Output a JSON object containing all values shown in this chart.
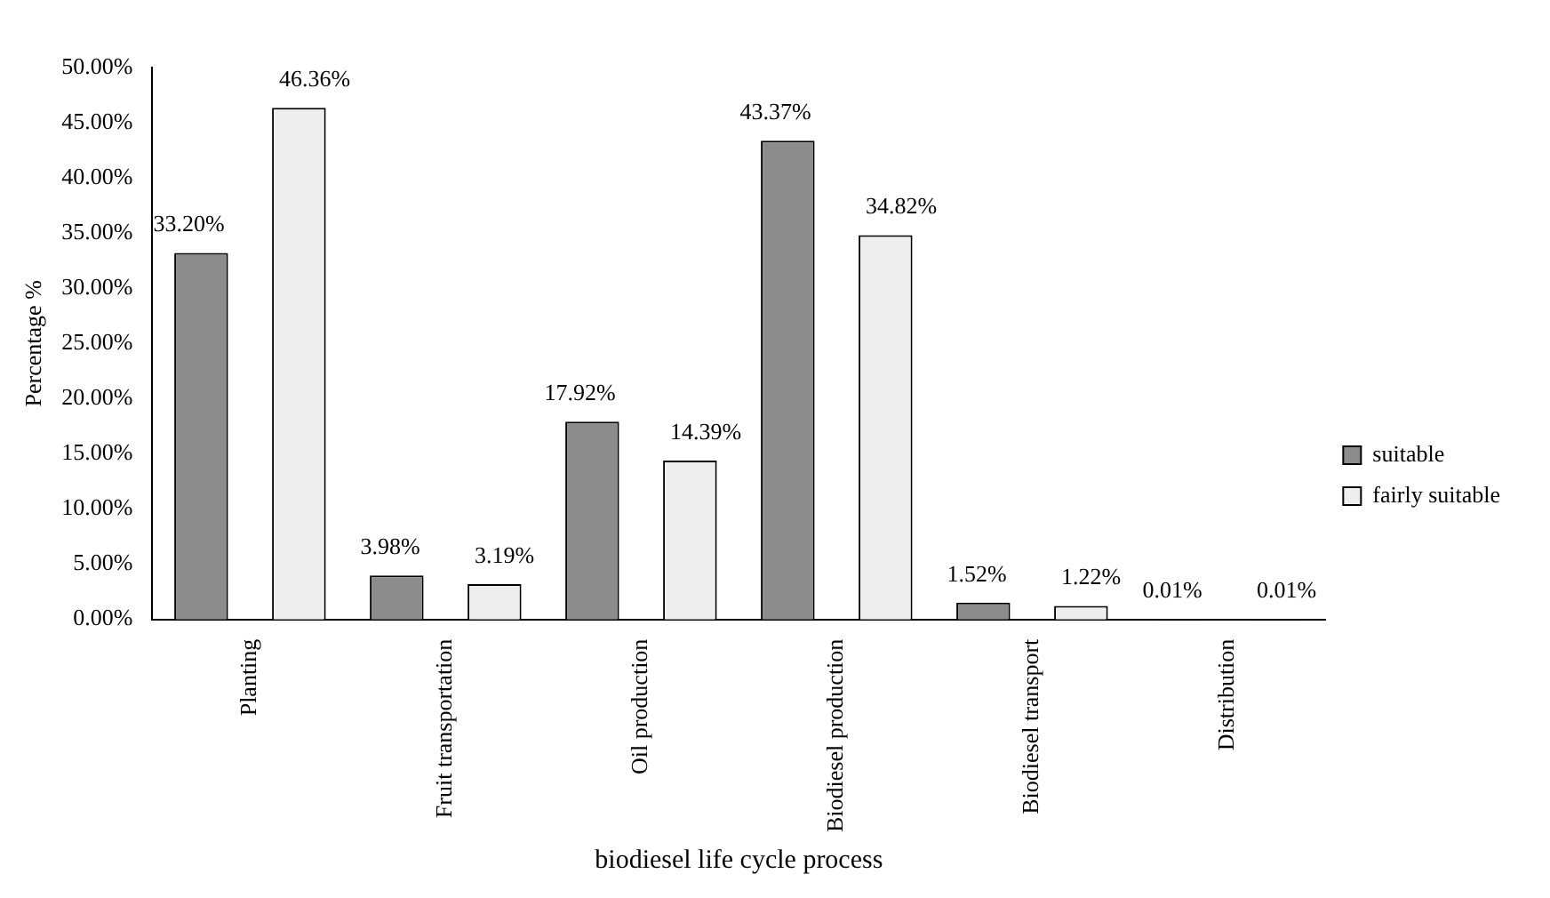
{
  "chart_data": {
    "type": "bar",
    "xlabel": "biodiesel life cycle process",
    "ylabel": "Percentage %",
    "categories": [
      "Planting",
      "Fruit transportation",
      "Oil production",
      "Biodiesel production",
      "Biodiesel transport",
      "Distribution"
    ],
    "series": [
      {
        "name": "suitable",
        "color": "#8c8c8c",
        "values": [
          33.2,
          3.98,
          17.92,
          43.37,
          1.52,
          0.01
        ],
        "value_labels": [
          "33.20%",
          "3.98%",
          "17.92%",
          "43.37%",
          "1.52%",
          "0.01%"
        ]
      },
      {
        "name": "fairly suitable",
        "color": "#eeeeee",
        "values": [
          46.36,
          3.19,
          14.39,
          34.82,
          1.22,
          0.01
        ],
        "value_labels": [
          "46.36%",
          "3.19%",
          "14.39%",
          "34.82%",
          "1.22%",
          "0.01%"
        ]
      }
    ],
    "ylim": [
      0,
      50
    ],
    "yticks": [
      {
        "value": 0,
        "label": "0.00%"
      },
      {
        "value": 5,
        "label": "5.00%"
      },
      {
        "value": 10,
        "label": "10.00%"
      },
      {
        "value": 15,
        "label": "15.00%"
      },
      {
        "value": 20,
        "label": "20.00%"
      },
      {
        "value": 25,
        "label": "25.00%"
      },
      {
        "value": 30,
        "label": "30.00%"
      },
      {
        "value": 35,
        "label": "35.00%"
      },
      {
        "value": 40,
        "label": "40.00%"
      },
      {
        "value": 45,
        "label": "45.00%"
      },
      {
        "value": 50,
        "label": "50.00%"
      }
    ],
    "grid": false,
    "legend": "right"
  }
}
